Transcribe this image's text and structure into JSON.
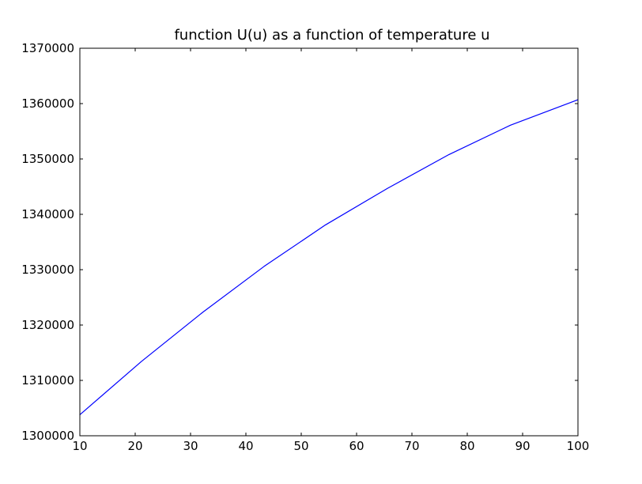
{
  "chart_data": {
    "type": "line",
    "title": "function U(u) as a function of temperature u",
    "xlabel": "",
    "ylabel": "",
    "xlim": [
      10,
      100
    ],
    "ylim": [
      1300000,
      1370000
    ],
    "xticks": [
      10,
      20,
      30,
      40,
      50,
      60,
      70,
      80,
      90,
      100
    ],
    "yticks": [
      1300000,
      1310000,
      1320000,
      1330000,
      1340000,
      1350000,
      1360000,
      1370000
    ],
    "grid": false,
    "series": [
      {
        "color": "#0000ff",
        "x": [
          10,
          21.1,
          32.2,
          43.3,
          54.4,
          65.6,
          76.7,
          87.8,
          100
        ],
        "y": [
          1303800,
          1313400,
          1322300,
          1330600,
          1338100,
          1344700,
          1350800,
          1356100,
          1360700
        ]
      }
    ]
  }
}
